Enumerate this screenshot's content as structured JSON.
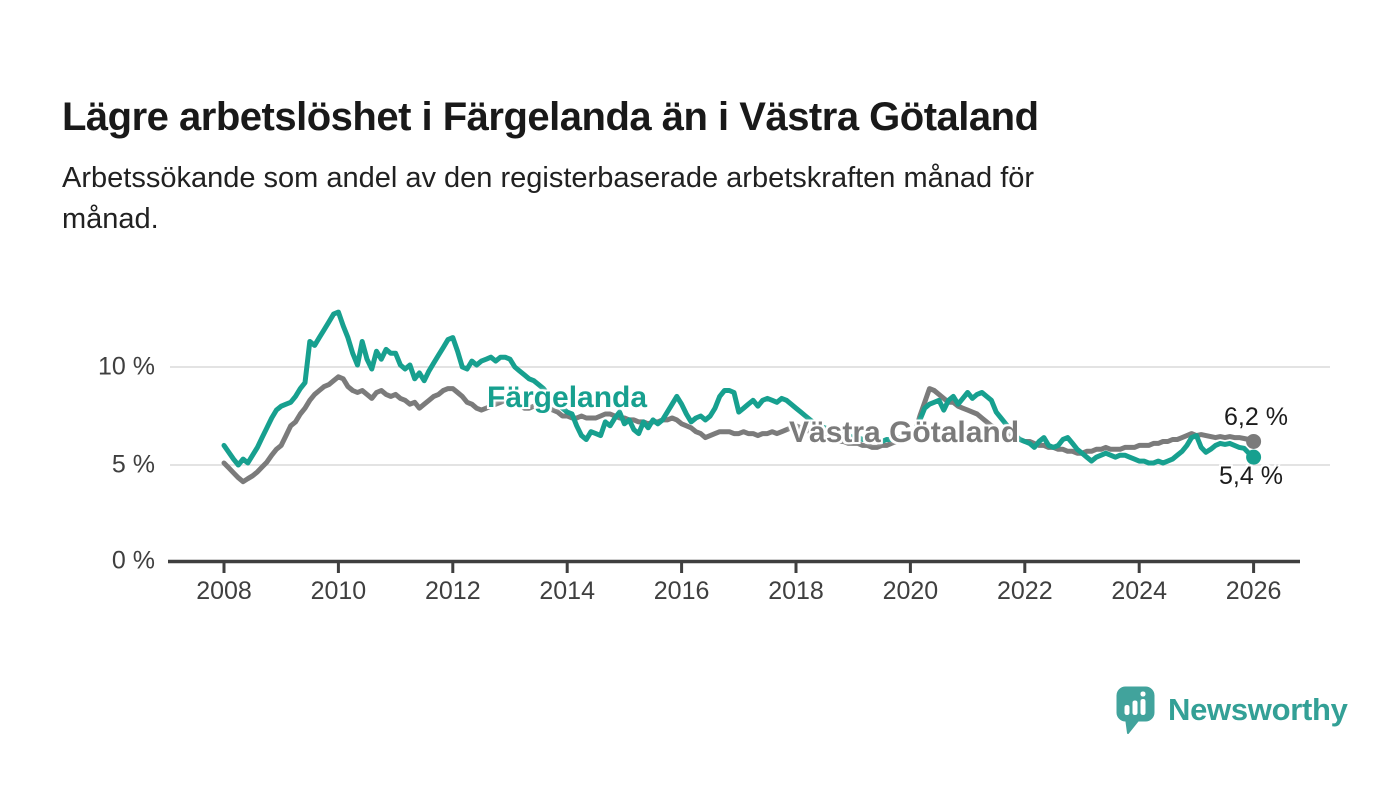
{
  "header": {
    "title": "Lägre arbetslöshet i Färgelanda än i Västra Götaland",
    "subtitle": "Arbetssökande som andel av den registerbaserade arbetskraften månad för månad.",
    "subtitle_lines": [
      "Arbetssökande som andel av den registerbaserade arbetskraften månad för",
      "månad."
    ]
  },
  "chart_data": {
    "type": "line",
    "title": "Lägre arbetslöshet i Färgelanda än i Västra Götaland",
    "subtitle": "Arbetssökande som andel av den registerbaserade arbetskraften månad för månad.",
    "unit": "%",
    "x_interval": "monthly",
    "x_start_year": 2008,
    "x_end": "2026-01",
    "x_ticks": [
      2008,
      2010,
      2012,
      2014,
      2016,
      2018,
      2020,
      2022,
      2024,
      2026
    ],
    "y_ticks": [
      {
        "value": 0,
        "label": "0 %"
      },
      {
        "value": 5,
        "label": "5 %"
      },
      {
        "value": 10,
        "label": "10 %"
      }
    ],
    "y_gridlines": [
      5,
      10
    ],
    "ylim": [
      0,
      13.5
    ],
    "grid": "horizontal-only",
    "legend": "inline-line-labels",
    "series": [
      {
        "name": "Västra Götaland",
        "color": "#7b7b7b",
        "end_label": "6,2 %",
        "final_value": 6.2,
        "values": [
          5.1,
          4.85,
          4.6,
          4.35,
          4.15,
          4.3,
          4.45,
          4.65,
          4.9,
          5.15,
          5.5,
          5.8,
          6.0,
          6.5,
          7.0,
          7.2,
          7.6,
          7.9,
          8.3,
          8.6,
          8.8,
          9.0,
          9.1,
          9.3,
          9.5,
          9.4,
          9.0,
          8.8,
          8.7,
          8.8,
          8.6,
          8.4,
          8.7,
          8.8,
          8.6,
          8.5,
          8.6,
          8.4,
          8.3,
          8.1,
          8.2,
          7.9,
          8.1,
          8.3,
          8.5,
          8.6,
          8.8,
          8.9,
          8.9,
          8.7,
          8.5,
          8.2,
          8.1,
          7.9,
          7.8,
          7.9,
          8.0,
          8.1,
          8.2,
          8.3,
          8.4,
          8.2,
          8.1,
          7.9,
          7.9,
          8.0,
          8.1,
          8.0,
          7.9,
          7.8,
          7.7,
          7.5,
          7.5,
          7.4,
          7.4,
          7.5,
          7.4,
          7.4,
          7.4,
          7.5,
          7.6,
          7.6,
          7.5,
          7.4,
          7.4,
          7.3,
          7.3,
          7.2,
          7.2,
          7.1,
          7.2,
          7.2,
          7.3,
          7.3,
          7.4,
          7.3,
          7.1,
          7.0,
          6.9,
          6.7,
          6.6,
          6.4,
          6.5,
          6.6,
          6.7,
          6.7,
          6.7,
          6.6,
          6.6,
          6.7,
          6.6,
          6.6,
          6.5,
          6.6,
          6.6,
          6.7,
          6.6,
          6.7,
          6.8,
          6.9,
          7.0,
          6.9,
          6.8,
          6.7,
          6.6,
          6.5,
          6.4,
          6.3,
          6.3,
          6.2,
          6.2,
          6.1,
          6.1,
          6.1,
          6.0,
          6.0,
          5.9,
          5.9,
          6.0,
          6.0,
          6.1,
          6.2,
          6.3,
          6.4,
          6.5,
          6.7,
          7.5,
          8.2,
          8.9,
          8.8,
          8.6,
          8.4,
          8.2,
          8.2,
          8.0,
          7.9,
          7.8,
          7.7,
          7.6,
          7.4,
          7.2,
          7.0,
          6.9,
          6.7,
          6.6,
          6.4,
          6.3,
          6.3,
          6.2,
          6.2,
          6.1,
          6.0,
          6.0,
          5.9,
          5.9,
          5.8,
          5.8,
          5.7,
          5.7,
          5.6,
          5.6,
          5.7,
          5.7,
          5.8,
          5.8,
          5.9,
          5.8,
          5.8,
          5.8,
          5.9,
          5.9,
          5.9,
          6.0,
          6.0,
          6.0,
          6.1,
          6.1,
          6.2,
          6.2,
          6.3,
          6.3,
          6.4,
          6.5,
          6.6,
          6.5,
          6.55,
          6.5,
          6.45,
          6.4,
          6.45,
          6.4,
          6.45,
          6.4,
          6.4,
          6.35,
          6.3,
          6.2
        ]
      },
      {
        "name": "Färgelanda",
        "color": "#17a08f",
        "end_label": "5,4 %",
        "final_value": 5.4,
        "values": [
          6.0,
          5.65,
          5.3,
          5.0,
          5.3,
          5.1,
          5.5,
          5.9,
          6.4,
          6.9,
          7.4,
          7.8,
          8.0,
          8.1,
          8.2,
          8.5,
          8.9,
          9.2,
          11.3,
          11.1,
          11.5,
          11.9,
          12.3,
          12.7,
          12.8,
          12.1,
          11.5,
          10.7,
          10.1,
          11.3,
          10.4,
          9.9,
          10.8,
          10.4,
          10.9,
          10.7,
          10.7,
          10.1,
          9.9,
          10.1,
          9.4,
          9.7,
          9.3,
          9.8,
          10.2,
          10.6,
          11.0,
          11.4,
          11.5,
          10.8,
          10.0,
          9.9,
          10.3,
          10.1,
          10.3,
          10.4,
          10.5,
          10.3,
          10.5,
          10.5,
          10.4,
          10.0,
          9.8,
          9.6,
          9.4,
          9.3,
          9.1,
          8.9,
          8.6,
          8.4,
          8.1,
          7.9,
          7.7,
          7.6,
          7.0,
          6.5,
          6.3,
          6.7,
          6.6,
          6.5,
          7.2,
          7.0,
          7.4,
          7.7,
          7.1,
          7.3,
          6.8,
          6.6,
          7.2,
          6.9,
          7.3,
          7.1,
          7.3,
          7.7,
          8.1,
          8.5,
          8.1,
          7.6,
          7.2,
          7.4,
          7.5,
          7.3,
          7.5,
          7.9,
          8.5,
          8.8,
          8.8,
          8.7,
          7.7,
          7.9,
          8.1,
          8.3,
          8.0,
          8.3,
          8.4,
          8.3,
          8.2,
          8.4,
          8.3,
          8.1,
          7.9,
          7.7,
          7.5,
          7.3,
          7.1,
          7.0,
          6.9,
          6.8,
          6.7,
          6.6,
          6.5,
          6.5,
          6.4,
          6.4,
          6.3,
          6.3,
          6.2,
          6.2,
          6.2,
          6.3,
          6.3,
          6.4,
          6.4,
          6.5,
          6.6,
          6.8,
          7.3,
          7.9,
          8.1,
          8.2,
          8.3,
          7.8,
          8.3,
          8.5,
          8.1,
          8.4,
          8.7,
          8.4,
          8.6,
          8.7,
          8.5,
          8.3,
          7.7,
          7.4,
          7.1,
          6.8,
          6.5,
          6.3,
          6.2,
          6.1,
          5.9,
          6.2,
          6.4,
          6.0,
          5.9,
          6.0,
          6.3,
          6.4,
          6.1,
          5.8,
          5.6,
          5.4,
          5.2,
          5.4,
          5.5,
          5.6,
          5.5,
          5.4,
          5.5,
          5.5,
          5.4,
          5.3,
          5.2,
          5.2,
          5.1,
          5.1,
          5.2,
          5.1,
          5.2,
          5.3,
          5.5,
          5.7,
          6.0,
          6.4,
          6.5,
          5.9,
          5.65,
          5.8,
          6.0,
          6.1,
          6.05,
          6.1,
          6.0,
          5.9,
          5.85,
          5.6,
          5.4
        ]
      }
    ]
  },
  "colors": {
    "teal": "#17a08f",
    "gray": "#7b7b7b",
    "axis": "#3f3f3f",
    "gridline": "#dadada",
    "title": "#191919",
    "value_label": "#1c1c1c",
    "logo": "#41a39c"
  },
  "footer": {
    "brand": "Newsworthy"
  }
}
